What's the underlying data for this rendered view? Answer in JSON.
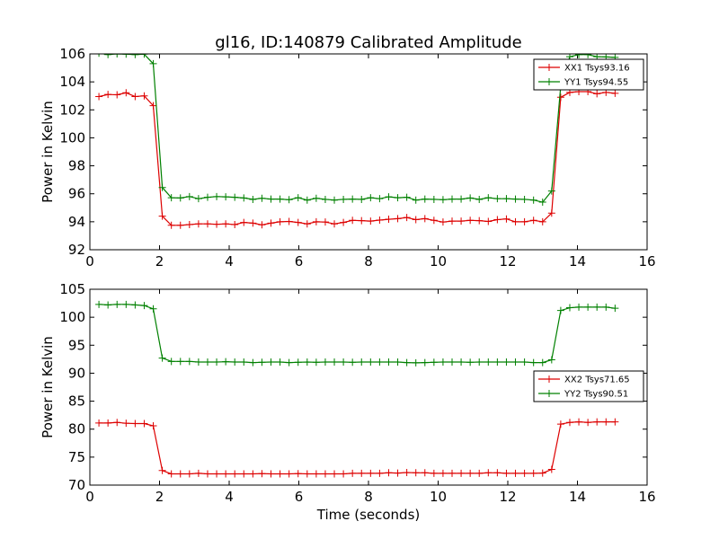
{
  "title": "gl16, ID:140879 Calibrated Amplitude",
  "chart_data": [
    {
      "type": "line",
      "ylabel": "Power in Kelvin",
      "xlabel": "",
      "xlim": [
        0,
        16
      ],
      "ylim": [
        92,
        106
      ],
      "xticks": [
        0,
        2,
        4,
        6,
        8,
        10,
        12,
        14,
        16
      ],
      "yticks": [
        92,
        94,
        96,
        98,
        100,
        102,
        104,
        106
      ],
      "legend_position": "top-right",
      "x": [
        0.26,
        0.52,
        0.78,
        1.04,
        1.3,
        1.56,
        1.82,
        2.08,
        2.34,
        2.6,
        2.86,
        3.12,
        3.38,
        3.64,
        3.9,
        4.16,
        4.42,
        4.68,
        4.94,
        5.2,
        5.46,
        5.72,
        5.98,
        6.24,
        6.5,
        6.76,
        7.02,
        7.28,
        7.54,
        7.8,
        8.06,
        8.32,
        8.58,
        8.84,
        9.1,
        9.36,
        9.62,
        9.88,
        10.14,
        10.4,
        10.66,
        10.92,
        11.18,
        11.44,
        11.7,
        11.96,
        12.22,
        12.48,
        12.74,
        13.0,
        13.26,
        13.52,
        13.78,
        14.04,
        14.3,
        14.56,
        14.82,
        15.08
      ],
      "series": [
        {
          "name": "XX1 Tsys93.16",
          "color": "#dd0000",
          "values": [
            102.95,
            103.1,
            103.08,
            103.22,
            102.95,
            103.0,
            102.3,
            94.4,
            93.75,
            93.75,
            93.8,
            93.85,
            93.85,
            93.82,
            93.85,
            93.8,
            93.95,
            93.9,
            93.78,
            93.9,
            94.0,
            94.02,
            93.95,
            93.85,
            94.0,
            93.98,
            93.85,
            93.95,
            94.1,
            94.08,
            94.05,
            94.12,
            94.18,
            94.22,
            94.3,
            94.15,
            94.22,
            94.1,
            93.98,
            94.05,
            94.05,
            94.1,
            94.08,
            94.02,
            94.15,
            94.2,
            94.0,
            94.0,
            94.1,
            94.0,
            94.62,
            102.9,
            103.25,
            103.3,
            103.3,
            103.15,
            103.25,
            103.18
          ]
        },
        {
          "name": "YY1 Tsys94.55",
          "color": "#008000",
          "values": [
            106.05,
            105.95,
            106.0,
            105.98,
            105.95,
            105.98,
            105.3,
            96.45,
            95.72,
            95.7,
            95.8,
            95.65,
            95.75,
            95.8,
            95.78,
            95.75,
            95.7,
            95.6,
            95.68,
            95.62,
            95.62,
            95.58,
            95.72,
            95.55,
            95.68,
            95.6,
            95.55,
            95.6,
            95.62,
            95.6,
            95.72,
            95.65,
            95.78,
            95.72,
            95.75,
            95.55,
            95.62,
            95.6,
            95.58,
            95.62,
            95.62,
            95.7,
            95.6,
            95.72,
            95.65,
            95.65,
            95.62,
            95.6,
            95.55,
            95.4,
            96.2,
            103.7,
            105.8,
            105.95,
            105.95,
            105.8,
            105.78,
            105.75
          ]
        }
      ]
    },
    {
      "type": "line",
      "ylabel": "Power in Kelvin",
      "xlabel": "Time (seconds)",
      "xlim": [
        0,
        16
      ],
      "ylim": [
        70,
        105
      ],
      "xticks": [
        0,
        2,
        4,
        6,
        8,
        10,
        12,
        14,
        16
      ],
      "yticks": [
        70,
        75,
        80,
        85,
        90,
        95,
        100,
        105
      ],
      "legend_position": "center-right",
      "x": [
        0.26,
        0.52,
        0.78,
        1.04,
        1.3,
        1.56,
        1.82,
        2.08,
        2.34,
        2.6,
        2.86,
        3.12,
        3.38,
        3.64,
        3.9,
        4.16,
        4.42,
        4.68,
        4.94,
        5.2,
        5.46,
        5.72,
        5.98,
        6.24,
        6.5,
        6.76,
        7.02,
        7.28,
        7.54,
        7.8,
        8.06,
        8.32,
        8.58,
        8.84,
        9.1,
        9.36,
        9.62,
        9.88,
        10.14,
        10.4,
        10.66,
        10.92,
        11.18,
        11.44,
        11.7,
        11.96,
        12.22,
        12.48,
        12.74,
        13.0,
        13.26,
        13.52,
        13.78,
        14.04,
        14.3,
        14.56,
        14.82,
        15.08
      ],
      "series": [
        {
          "name": "XX2 Tsys71.65",
          "color": "#dd0000",
          "values": [
            81.1,
            81.1,
            81.2,
            81.05,
            81.0,
            81.0,
            80.6,
            72.6,
            72.0,
            72.0,
            72.0,
            72.1,
            72.0,
            72.0,
            72.0,
            72.0,
            72.0,
            72.0,
            72.05,
            72.0,
            72.0,
            72.0,
            72.05,
            72.0,
            72.0,
            72.0,
            72.0,
            72.0,
            72.1,
            72.1,
            72.1,
            72.1,
            72.2,
            72.15,
            72.25,
            72.2,
            72.2,
            72.1,
            72.1,
            72.1,
            72.1,
            72.1,
            72.1,
            72.2,
            72.2,
            72.1,
            72.1,
            72.1,
            72.1,
            72.15,
            72.8,
            80.9,
            81.2,
            81.3,
            81.2,
            81.3,
            81.3,
            81.3
          ]
        },
        {
          "name": "YY2 Tsys90.51",
          "color": "#008000",
          "values": [
            102.3,
            102.2,
            102.3,
            102.3,
            102.2,
            102.1,
            101.5,
            92.7,
            92.1,
            92.1,
            92.1,
            92.0,
            92.0,
            92.0,
            92.05,
            92.0,
            92.0,
            91.9,
            91.95,
            92.0,
            92.0,
            91.9,
            91.95,
            92.0,
            91.95,
            92.0,
            92.0,
            92.0,
            91.95,
            92.0,
            92.0,
            92.0,
            92.0,
            92.0,
            91.9,
            91.85,
            91.9,
            91.95,
            92.0,
            92.0,
            92.0,
            91.95,
            92.0,
            92.0,
            92.0,
            92.0,
            92.0,
            92.0,
            91.9,
            91.9,
            92.4,
            101.2,
            101.7,
            101.8,
            101.8,
            101.8,
            101.8,
            101.6
          ]
        }
      ]
    }
  ]
}
